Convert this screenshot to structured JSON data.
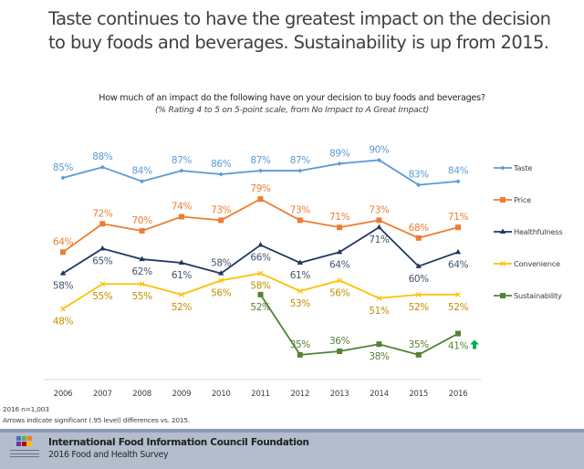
{
  "slide": {
    "title_line1": "Taste continues to have the greatest impact on the decision",
    "title_line2": "to buy foods and beverages. Sustainability is up from 2015."
  },
  "notes": {
    "sample": "2016 n=1,003",
    "arrows": "Arrows indicate significant (.95 level) differences vs. 2015."
  },
  "footer": {
    "organization": "International Food Information Council Foundation",
    "survey": "2016 Food and Health Survey",
    "logo_icon": "ific-foundation-logo-icon"
  },
  "significance": {
    "icon": "up-arrow-icon",
    "series": "Sustainability",
    "year": "2016",
    "color": "#00b050"
  },
  "chart_data": {
    "type": "line",
    "title": "How much of an impact do the following have on your decision to buy foods and beverages?",
    "subtitle": "(% Rating 4 to 5 on 5-point scale, from No Impact to A Great Impact)",
    "xlabel": "",
    "ylabel": "",
    "x": [
      "2006",
      "2007",
      "2008",
      "2009",
      "2010",
      "2011",
      "2012",
      "2013",
      "2014",
      "2015",
      "2016"
    ],
    "ylim": [
      28,
      95
    ],
    "grid": false,
    "y_axis_visible": false,
    "legend_position": "right",
    "series": [
      {
        "name": "Taste",
        "color": "#5b9bd5",
        "marker": "diamond",
        "values": [
          85,
          88,
          84,
          87,
          86,
          87,
          87,
          89,
          90,
          83,
          84
        ],
        "labels": [
          "85%",
          "88%",
          "84%",
          "87%",
          "86%",
          "87%",
          "87%",
          "89%",
          "90%",
          "83%",
          "84%"
        ],
        "label_pos": [
          "above",
          "above",
          "above",
          "above",
          "above",
          "above",
          "above",
          "above",
          "above",
          "above",
          "above"
        ]
      },
      {
        "name": "Price",
        "color": "#ed7d31",
        "marker": "square",
        "values": [
          64,
          72,
          70,
          74,
          73,
          79,
          73,
          71,
          73,
          68,
          71
        ],
        "labels": [
          "64%",
          "72%",
          "70%",
          "74%",
          "73%",
          "79%",
          "73%",
          "71%",
          "73%",
          "68%",
          "71%"
        ],
        "label_pos": [
          "above",
          "above",
          "above",
          "above",
          "above",
          "above",
          "above",
          "above",
          "above",
          "above",
          "above"
        ]
      },
      {
        "name": "Healthfulness",
        "color": "#1f3864",
        "label_color": "#44546a",
        "marker": "triangle",
        "values": [
          58,
          65,
          62,
          61,
          58,
          66,
          61,
          64,
          71,
          60,
          64
        ],
        "labels": [
          "58%",
          "65%",
          "62%",
          "61%",
          "58%",
          "66%",
          "61%",
          "64%",
          "71%",
          "60%",
          "64%"
        ],
        "label_pos": [
          "below",
          "below",
          "below",
          "below",
          "above",
          "below",
          "below",
          "below",
          "below",
          "below",
          "below"
        ]
      },
      {
        "name": "Convenience",
        "color": "#ffc000",
        "label_color": "#bf9000",
        "marker": "x",
        "values": [
          48,
          55,
          55,
          52,
          56,
          58,
          53,
          56,
          51,
          52,
          52
        ],
        "labels": [
          "48%",
          "55%",
          "55%",
          "52%",
          "56%",
          "58%",
          "53%",
          "56%",
          "51%",
          "52%",
          "52%"
        ],
        "label_pos": [
          "below",
          "below",
          "below",
          "below",
          "below",
          "below",
          "below",
          "below",
          "below",
          "below",
          "below"
        ]
      },
      {
        "name": "Sustainability",
        "color": "#548235",
        "marker": "square",
        "values": [
          null,
          null,
          null,
          null,
          null,
          52,
          35,
          36,
          38,
          35,
          41
        ],
        "labels": [
          null,
          null,
          null,
          null,
          null,
          "52%",
          "35%",
          "36%",
          "38%",
          "35%",
          "41%"
        ],
        "label_pos": [
          null,
          null,
          null,
          null,
          null,
          "below",
          "above",
          "above",
          "below",
          "above",
          "below"
        ]
      }
    ]
  }
}
